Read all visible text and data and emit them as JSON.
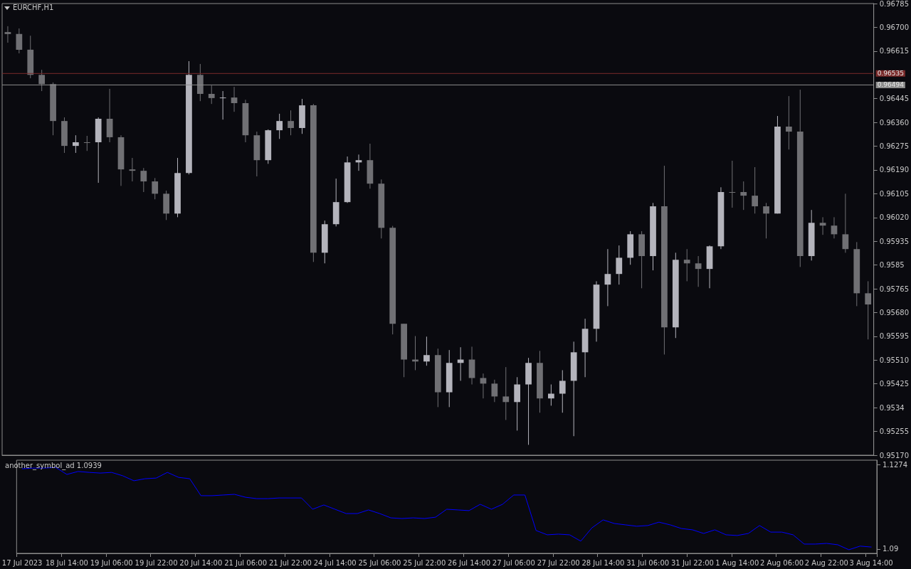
{
  "chart_data": [
    {
      "type": "candlestick",
      "title": "EURCHF,H1",
      "categories": [
        null,
        null,
        null,
        null,
        null,
        null,
        null,
        null,
        null,
        null,
        null,
        null,
        null,
        null,
        null,
        null,
        null,
        null,
        null,
        null,
        null,
        null,
        null,
        null,
        null,
        null,
        null,
        null,
        null,
        null,
        null,
        null,
        null,
        null,
        null,
        null,
        null,
        null,
        null,
        null,
        null,
        null,
        null,
        null,
        null,
        null,
        null,
        null,
        null,
        null,
        null,
        null,
        null,
        null,
        null,
        null,
        null,
        null,
        null,
        null,
        null,
        null,
        null,
        null,
        null,
        null,
        null,
        null,
        null,
        null,
        null,
        null,
        null,
        null,
        null,
        null,
        null
      ],
      "ohlc": [
        [
          0.96683,
          0.96704,
          0.96645,
          0.96676
        ],
        [
          0.96676,
          0.96696,
          0.96607,
          0.9662
        ],
        [
          0.9662,
          0.9667,
          0.96518,
          0.9653
        ],
        [
          0.9653,
          0.96548,
          0.96472,
          0.96497
        ],
        [
          0.96497,
          0.96503,
          0.96314,
          0.96365
        ],
        [
          0.96365,
          0.96378,
          0.96251,
          0.96276
        ],
        [
          0.96276,
          0.96314,
          0.96251,
          0.96289
        ],
        [
          0.96289,
          0.96312,
          0.96258,
          0.96289
        ],
        [
          0.96289,
          0.96378,
          0.96144,
          0.96373
        ],
        [
          0.96373,
          0.9648,
          0.96289,
          0.96307
        ],
        [
          0.96307,
          0.96314,
          0.96133,
          0.96192
        ],
        [
          0.96192,
          0.96233,
          0.96149,
          0.96187
        ],
        [
          0.96187,
          0.96197,
          0.96111,
          0.96149
        ],
        [
          0.96149,
          0.96161,
          0.96085,
          0.96105
        ],
        [
          0.96105,
          0.96116,
          0.96011,
          0.96034
        ],
        [
          0.96034,
          0.96233,
          0.96021,
          0.96179
        ],
        [
          0.96179,
          0.96579,
          0.96174,
          0.9653
        ],
        [
          0.9653,
          0.96569,
          0.96436,
          0.96462
        ],
        [
          0.96462,
          0.96492,
          0.96426,
          0.96447
        ],
        [
          0.96447,
          0.96472,
          0.9637,
          0.96449
        ],
        [
          0.96449,
          0.96487,
          0.96398,
          0.96429
        ],
        [
          0.96429,
          0.96441,
          0.96289,
          0.96314
        ],
        [
          0.96314,
          0.96327,
          0.96167,
          0.96225
        ],
        [
          0.96225,
          0.96335,
          0.96212,
          0.96332
        ],
        [
          0.96332,
          0.96391,
          0.96301,
          0.96365
        ],
        [
          0.96365,
          0.96403,
          0.96314,
          0.9634
        ],
        [
          0.9634,
          0.96444,
          0.96319,
          0.96421
        ],
        [
          0.96421,
          0.96426,
          0.95861,
          0.95894
        ],
        [
          0.95894,
          0.96009,
          0.95856,
          0.95996
        ],
        [
          0.95996,
          0.96159,
          0.95988,
          0.96075
        ],
        [
          0.96075,
          0.96238,
          0.96072,
          0.96217
        ],
        [
          0.96217,
          0.96245,
          0.96187,
          0.96225
        ],
        [
          0.96225,
          0.96284,
          0.96123,
          0.96141
        ],
        [
          0.96141,
          0.96156,
          0.95945,
          0.95983
        ],
        [
          0.95983,
          0.9599,
          0.95602,
          0.9564
        ],
        [
          0.9564,
          0.9564,
          0.95449,
          0.95512
        ],
        [
          0.95512,
          0.95596,
          0.95474,
          0.95505
        ],
        [
          0.95505,
          0.95594,
          0.9549,
          0.95528
        ],
        [
          0.95528,
          0.95551,
          0.95342,
          0.95395
        ],
        [
          0.95395,
          0.95546,
          0.95342,
          0.955
        ],
        [
          0.955,
          0.95556,
          0.95436,
          0.95512
        ],
        [
          0.95512,
          0.95558,
          0.95423,
          0.95446
        ],
        [
          0.95446,
          0.95462,
          0.95373,
          0.95426
        ],
        [
          0.95426,
          0.9544,
          0.9536,
          0.9538
        ],
        [
          0.9538,
          0.95485,
          0.95296,
          0.9536
        ],
        [
          0.9536,
          0.95449,
          0.95258,
          0.95423
        ],
        [
          0.95423,
          0.95518,
          0.95207,
          0.955
        ],
        [
          0.955,
          0.95543,
          0.95322,
          0.95373
        ],
        [
          0.95373,
          0.95423,
          0.95347,
          0.9539
        ],
        [
          0.9539,
          0.95474,
          0.95322,
          0.95436
        ],
        [
          0.95436,
          0.95576,
          0.95238,
          0.95538
        ],
        [
          0.95538,
          0.95658,
          0.95449,
          0.95622
        ],
        [
          0.95622,
          0.95792,
          0.95576,
          0.9578
        ],
        [
          0.9578,
          0.95907,
          0.95703,
          0.95818
        ],
        [
          0.95818,
          0.9592,
          0.9578,
          0.95876
        ],
        [
          0.95876,
          0.95971,
          0.95851,
          0.9596
        ],
        [
          0.9596,
          0.95971,
          0.95767,
          0.95882
        ],
        [
          0.95882,
          0.96072,
          0.95831,
          0.9606
        ],
        [
          0.9606,
          0.96205,
          0.9553,
          0.95627
        ],
        [
          0.95627,
          0.95894,
          0.95589,
          0.95869
        ],
        [
          0.95869,
          0.95907,
          0.95792,
          0.95856
        ],
        [
          0.95856,
          0.95882,
          0.95772,
          0.95836
        ],
        [
          0.95836,
          0.9592,
          0.95767,
          0.95917
        ],
        [
          0.95917,
          0.96128,
          0.95907,
          0.96111
        ],
        [
          0.96111,
          0.96223,
          0.96055,
          0.96111
        ],
        [
          0.96111,
          0.96149,
          0.96047,
          0.96098
        ],
        [
          0.96098,
          0.962,
          0.96034,
          0.9606
        ],
        [
          0.9606,
          0.96072,
          0.95945,
          0.96034
        ],
        [
          0.96034,
          0.96383,
          0.96034,
          0.96345
        ],
        [
          0.96345,
          0.96454,
          0.96263,
          0.96327
        ],
        [
          0.96327,
          0.96477,
          0.95843,
          0.95882
        ],
        [
          0.95882,
          0.96047,
          0.95866,
          0.96001
        ],
        [
          0.96001,
          0.96021,
          0.95958,
          0.95991
        ],
        [
          0.95991,
          0.96021,
          0.95945,
          0.9596
        ],
        [
          0.9596,
          0.96105,
          0.95894,
          0.95907
        ],
        [
          0.95907,
          0.95932,
          0.95703,
          0.95749
        ],
        [
          0.95749,
          0.95792,
          0.95584,
          0.95709
        ]
      ],
      "colors": [
        "#707074",
        "#707074",
        "#707074",
        "#707074",
        "#707074",
        "#707074",
        "#b4b4bc",
        "#707074",
        "#b4b4bc",
        "#707074",
        "#707074",
        "#707074",
        "#707074",
        "#707074",
        "#707074",
        "#b4b4bc",
        "#b4b4bc",
        "#707074",
        "#707074",
        "#b4b4bc",
        "#707074",
        "#707074",
        "#707074",
        "#b4b4bc",
        "#b4b4bc",
        "#707074",
        "#b4b4bc",
        "#707074",
        "#b4b4bc",
        "#b4b4bc",
        "#b4b4bc",
        "#b4b4bc",
        "#707074",
        "#707074",
        "#707074",
        "#707074",
        "#707074",
        "#b4b4bc",
        "#707074",
        "#b4b4bc",
        "#b4b4bc",
        "#707074",
        "#707074",
        "#707074",
        "#707074",
        "#b4b4bc",
        "#b4b4bc",
        "#707074",
        "#b4b4bc",
        "#b4b4bc",
        "#b4b4bc",
        "#b4b4bc",
        "#b4b4bc",
        "#b4b4bc",
        "#b4b4bc",
        "#b4b4bc",
        "#707074",
        "#b4b4bc",
        "#707074",
        "#b4b4bc",
        "#707074",
        "#707074",
        "#b4b4bc",
        "#b4b4bc",
        "#707074",
        "#707074",
        "#707074",
        "#707074",
        "#b4b4bc",
        "#707074",
        "#707074",
        "#b4b4bc",
        "#707074",
        "#707074",
        "#707074",
        "#707074",
        "#707074"
      ],
      "ylim": [
        0.9517,
        0.96785
      ],
      "yticks": [
        {
          "value": 0.9517,
          "label": "0.95170"
        },
        0.95255,
        0.9534,
        0.95425,
        {
          "value": 0.9551,
          "label": "0.95510"
        },
        0.95595,
        {
          "value": 0.9568,
          "label": "0.95680"
        },
        0.95765,
        0.9585,
        0.95935,
        {
          "value": 0.9602,
          "label": "0.96020"
        },
        0.96105,
        {
          "value": 0.9619,
          "label": "0.96190"
        },
        0.96275,
        {
          "value": 0.9636,
          "label": "0.96360"
        },
        0.96445,
        0.96615,
        {
          "value": 0.967,
          "label": "0.96700"
        },
        0.96785
      ],
      "ref_lines": [
        {
          "axis": "y",
          "value": 0.96535,
          "label": "0.96535",
          "color": "#7a2a2a"
        },
        {
          "axis": "y",
          "value": 0.96494,
          "label": "0.96494",
          "color": "#8c8c8c"
        }
      ],
      "tick_labels": "y"
    },
    {
      "type": "line",
      "title": "another_symbol_ad 1.0939",
      "categories": [
        "17 Jul 2023",
        null,
        null,
        null,
        "18 Jul 14:00",
        null,
        null,
        null,
        "19 Jul 06:00",
        null,
        null,
        null,
        "19 Jul 22:00",
        null,
        null,
        null,
        "20 Jul 14:00",
        null,
        null,
        null,
        "21 Jul 06:00",
        null,
        null,
        null,
        "21 Jul 22:00",
        null,
        null,
        null,
        "24 Jul 14:00",
        null,
        null,
        null,
        "25 Jul 06:00",
        null,
        null,
        null,
        "25 Jul 22:00",
        null,
        null,
        null,
        "26 Jul 14:00",
        null,
        null,
        null,
        "27 Jul 06:00",
        null,
        null,
        null,
        "27 Jul 22:00",
        null,
        null,
        null,
        "28 Jul 14:00",
        null,
        null,
        null,
        "31 Jul 06:00",
        null,
        null,
        null,
        "31 Jul 22:00",
        null,
        null,
        null,
        "1 Aug 14:00",
        null,
        null,
        null,
        "2 Aug 06:00",
        null,
        null,
        null,
        "2 Aug 22:00",
        null,
        null,
        null,
        "3 Aug 14:00"
      ],
      "series": [
        {
          "color": "#0000ff",
          "values": [
            1.1255,
            1.1258,
            1.1258,
            1.1261,
            1.123,
            1.1243,
            1.1239,
            1.1236,
            1.1239,
            1.1224,
            1.1202,
            1.1211,
            1.1214,
            1.1239,
            1.1217,
            1.1211,
            1.1136,
            1.1136,
            1.1139,
            1.1142,
            1.1129,
            1.1123,
            1.1123,
            1.1126,
            1.1126,
            1.1126,
            1.1076,
            1.1095,
            1.1076,
            1.1057,
            1.1057,
            1.1073,
            1.1057,
            1.1038,
            1.1035,
            1.1038,
            1.1035,
            1.1041,
            1.1076,
            1.1073,
            1.107,
            1.1098,
            1.1076,
            1.1098,
            1.1139,
            1.1139,
            1.0982,
            1.0963,
            1.0966,
            1.0963,
            1.0935,
            1.0994,
            1.1029,
            1.1013,
            1.1007,
            1.1001,
            1.1004,
            1.1019,
            1.1007,
            1.0991,
            1.0985,
            1.0969,
            1.0985,
            1.0963,
            1.096,
            1.0969,
            1.1004,
            1.0975,
            1.0975,
            1.0963,
            1.0922,
            1.0922,
            1.0925,
            1.0919,
            1.0897,
            1.0913,
            1.0909
          ]
        }
      ],
      "ylim": [
        1.0881,
        1.1293
      ],
      "yticks": [
        1.1274,
        1.09
      ],
      "marker": "none"
    }
  ]
}
